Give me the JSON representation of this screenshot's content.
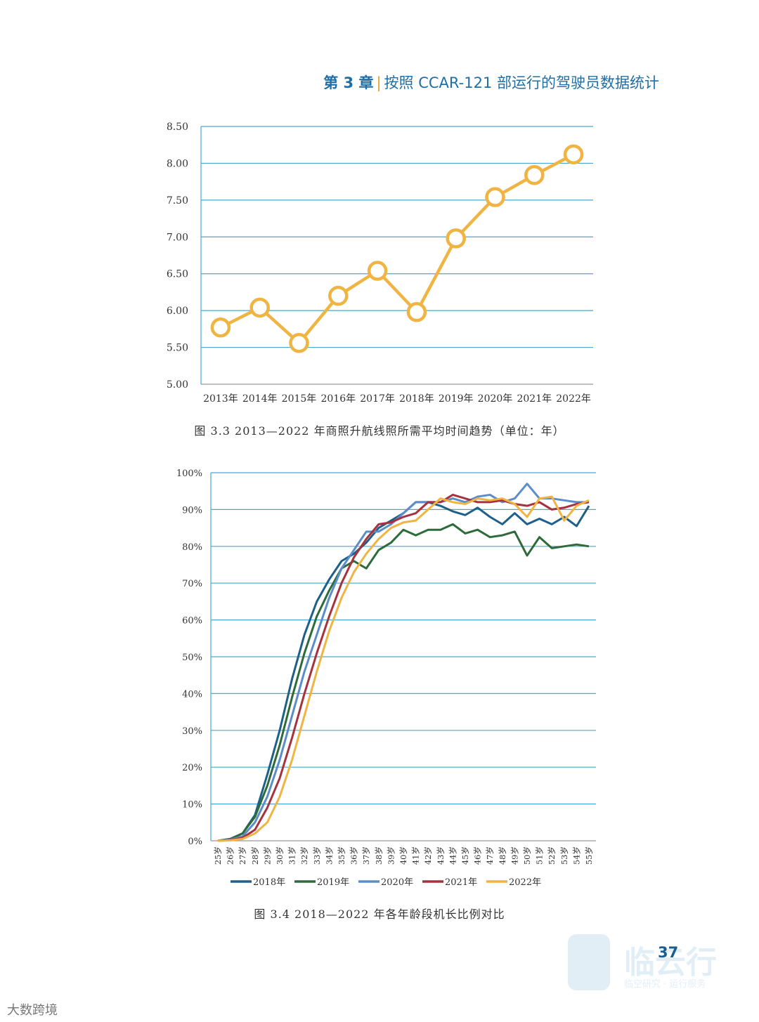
{
  "header": {
    "chapter": "第 3 章",
    "title": "按照 CCAR-121 部运行的驾驶员数据统计"
  },
  "page_number": "37",
  "watermark": {
    "title": "临云行",
    "subtitle": "临空研究 · 运行服务",
    "source": "大数跨境"
  },
  "colors": {
    "grid": "#4aa8d2",
    "line1": "#f0b443",
    "s2018": "#1f5f8b",
    "s2019": "#2e6b3a",
    "s2020": "#5b8dc9",
    "s2021": "#a7323f",
    "s2022": "#f0b443"
  },
  "chart_data": [
    {
      "type": "line",
      "title": "",
      "caption": "图 3.3   2013—2022 年商照升航线照所需平均时间趋势（单位：年）",
      "categories": [
        "2013年",
        "2014年",
        "2015年",
        "2016年",
        "2017年",
        "2018年",
        "2019年",
        "2020年",
        "2021年",
        "2022年"
      ],
      "values": [
        5.77,
        6.04,
        5.56,
        6.2,
        6.54,
        5.98,
        6.98,
        7.54,
        7.84,
        8.12
      ],
      "ylim": [
        5.0,
        8.5
      ],
      "yticks": [
        "5.00",
        "5.50",
        "6.00",
        "6.50",
        "7.00",
        "7.50",
        "8.00",
        "8.50"
      ],
      "xlabel": "",
      "ylabel": "",
      "grid": true
    },
    {
      "type": "line",
      "title": "",
      "caption": "图 3.4    2018—2022 年各年龄段机长比例对比",
      "categories": [
        "25岁",
        "26岁",
        "27岁",
        "28岁",
        "29岁",
        "30岁",
        "31岁",
        "32岁",
        "33岁",
        "34岁",
        "35岁",
        "36岁",
        "37岁",
        "38岁",
        "39岁",
        "40岁",
        "41岁",
        "42岁",
        "43岁",
        "44岁",
        "45岁",
        "46岁",
        "47岁",
        "48岁",
        "49岁",
        "50岁",
        "51岁",
        "52岁",
        "53岁",
        "54岁",
        "55岁"
      ],
      "ylim": [
        0,
        100
      ],
      "yticks": [
        "0%",
        "10%",
        "20%",
        "30%",
        "40%",
        "50%",
        "60%",
        "70%",
        "80%",
        "90%",
        "100%"
      ],
      "legend_position": "bottom",
      "series": [
        {
          "name": "2018年",
          "values": [
            0,
            0.5,
            2,
            7,
            18,
            30,
            44,
            56,
            65,
            71,
            76,
            78,
            81,
            85,
            87,
            89,
            92,
            92,
            91,
            89.5,
            88.5,
            90.5,
            88,
            86,
            89,
            86,
            87.5,
            86,
            88,
            85.5,
            91
          ]
        },
        {
          "name": "2019年",
          "values": [
            0,
            0.5,
            2,
            6.5,
            15,
            26,
            39,
            51,
            61,
            68,
            74,
            76,
            74,
            79,
            81,
            84.5,
            83,
            84.5,
            84.5,
            86,
            83.5,
            84.5,
            82.5,
            83,
            84,
            77.5,
            82.5,
            79.5,
            80,
            80.5,
            80
          ]
        },
        {
          "name": "2020年",
          "values": [
            0,
            0.3,
            1.2,
            5,
            12,
            22,
            34,
            46,
            56,
            66,
            74,
            79,
            84,
            84,
            86,
            89,
            92,
            92,
            92,
            93,
            92,
            93.5,
            94,
            92,
            93,
            97,
            93,
            93,
            92.5,
            92,
            92
          ]
        },
        {
          "name": "2021年",
          "values": [
            0,
            0.2,
            0.8,
            3,
            9,
            17,
            28,
            40,
            51,
            61,
            70,
            77,
            82,
            86,
            86.5,
            88,
            89,
            92,
            92,
            94,
            93,
            92,
            92,
            92.5,
            91.5,
            91,
            92,
            90,
            90.5,
            91.5,
            92
          ]
        },
        {
          "name": "2022年",
          "values": [
            0,
            0.1,
            0.5,
            2,
            5,
            12,
            22,
            34,
            46,
            57,
            66,
            73,
            78,
            82,
            85,
            86.5,
            87,
            90,
            93,
            92,
            91.5,
            93,
            92.5,
            93,
            91.5,
            88,
            93,
            93.5,
            87,
            91,
            92.5
          ]
        }
      ],
      "xlabel": "",
      "ylabel": "",
      "grid": true
    }
  ]
}
